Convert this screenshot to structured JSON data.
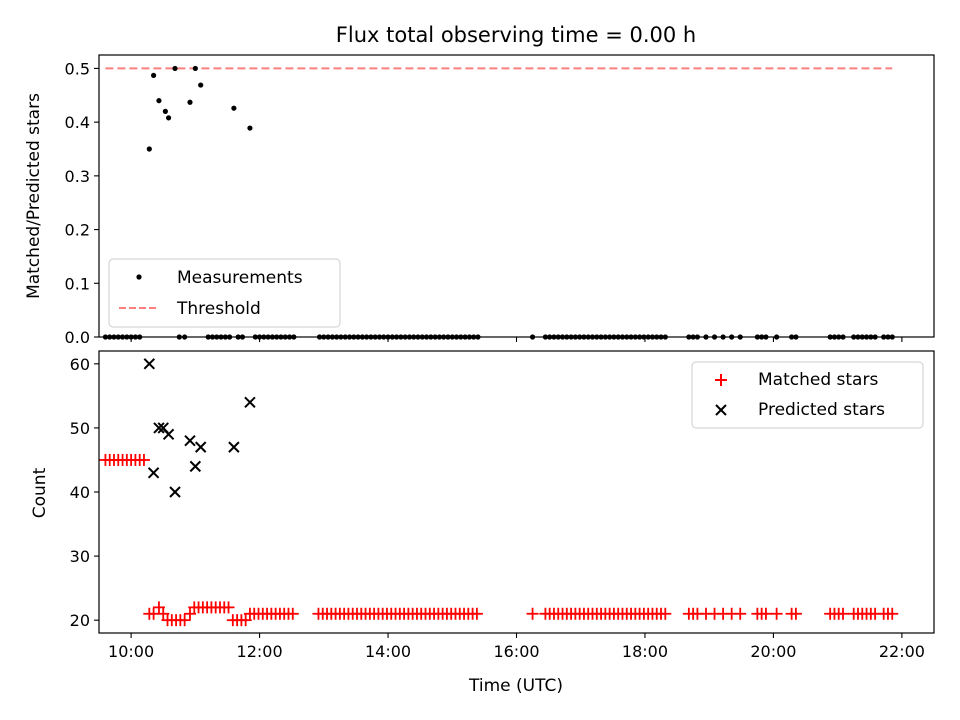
{
  "chart_data": [
    {
      "type": "scatter",
      "title": "Flux total observing time = 0.00 h",
      "xlabel": "",
      "ylabel": "Matched/Predicted stars",
      "xlim": [
        "09:30",
        "22:30"
      ],
      "ylim": [
        0,
        0.525
      ],
      "xticks": [
        "10:00",
        "12:00",
        "14:00",
        "16:00",
        "18:00",
        "20:00",
        "22:00"
      ],
      "yticks": [
        "0.0",
        "0.1",
        "0.2",
        "0.3",
        "0.4",
        "0.5"
      ],
      "legend": {
        "placement": "lower-left",
        "entries": [
          "Measurements",
          "Threshold"
        ]
      },
      "series": [
        {
          "name": "Measurements",
          "color": "#000000",
          "marker": "dot",
          "points": [
            [
              "10:17",
              0.35
            ],
            [
              "10:21",
              0.487
            ],
            [
              "10:26",
              0.44
            ],
            [
              "10:32",
              0.42
            ],
            [
              "10:35",
              0.408
            ],
            [
              "10:41",
              0.5
            ],
            [
              "10:55",
              0.437
            ],
            [
              "11:00",
              0.5
            ],
            [
              "11:05",
              0.469
            ],
            [
              "11:36",
              0.426
            ],
            [
              "11:51",
              0.389
            ]
          ],
          "zero_times": [
            "09:36",
            "09:40",
            "09:44",
            "09:48",
            "09:52",
            "09:56",
            "10:00",
            "10:04",
            "10:08",
            "10:45",
            "10:50",
            "11:12",
            "11:16",
            "11:20",
            "11:24",
            "11:28",
            "11:32",
            "11:40",
            "11:44",
            "11:56",
            "12:00",
            "12:04",
            "12:08",
            "12:12",
            "12:16",
            "12:20",
            "12:24",
            "12:28",
            "12:32",
            "12:56",
            "13:00",
            "13:04",
            "13:08",
            "13:12",
            "13:16",
            "13:20",
            "13:24",
            "13:28",
            "13:32",
            "13:36",
            "13:40",
            "13:44",
            "13:48",
            "13:52",
            "13:56",
            "14:00",
            "14:04",
            "14:08",
            "14:12",
            "14:16",
            "14:20",
            "14:24",
            "14:28",
            "14:32",
            "14:36",
            "14:40",
            "14:44",
            "14:48",
            "14:52",
            "14:56",
            "15:00",
            "15:04",
            "15:08",
            "15:12",
            "15:16",
            "15:20",
            "15:24",
            "16:15",
            "16:27",
            "16:31",
            "16:35",
            "16:39",
            "16:43",
            "16:47",
            "16:51",
            "16:55",
            "16:59",
            "17:03",
            "17:07",
            "17:11",
            "17:15",
            "17:19",
            "17:23",
            "17:27",
            "17:31",
            "17:35",
            "17:39",
            "17:43",
            "17:47",
            "17:51",
            "17:55",
            "17:59",
            "18:03",
            "18:07",
            "18:11",
            "18:15",
            "18:19",
            "18:41",
            "18:45",
            "18:49",
            "18:57",
            "19:05",
            "19:13",
            "19:21",
            "19:29",
            "19:45",
            "19:49",
            "19:53",
            "20:03",
            "20:17",
            "20:21",
            "20:53",
            "20:57",
            "21:01",
            "21:05",
            "21:15",
            "21:19",
            "21:23",
            "21:27",
            "21:31",
            "21:35",
            "21:43",
            "21:47",
            "21:51"
          ]
        },
        {
          "name": "Threshold",
          "color": "#ff7f7f",
          "style": "dashed",
          "x": [
            "09:36",
            "21:51"
          ],
          "values": [
            0.5,
            0.5
          ]
        }
      ]
    },
    {
      "type": "scatter",
      "title": "",
      "xlabel": "Time (UTC)",
      "ylabel": "Count",
      "xlim": [
        "09:30",
        "22:30"
      ],
      "ylim": [
        18,
        62
      ],
      "xticks": [
        "10:00",
        "12:00",
        "14:00",
        "16:00",
        "18:00",
        "20:00",
        "22:00"
      ],
      "yticks": [
        "20",
        "30",
        "40",
        "50",
        "60"
      ],
      "legend": {
        "placement": "top-right",
        "entries": [
          "Matched stars",
          "Predicted stars"
        ]
      },
      "series": [
        {
          "name": "Matched stars",
          "color": "#ff0000",
          "marker": "plus",
          "points": [
            [
              "09:36",
              45
            ],
            [
              "09:40",
              45
            ],
            [
              "09:44",
              45
            ],
            [
              "09:48",
              45
            ],
            [
              "09:52",
              45
            ],
            [
              "09:56",
              45
            ],
            [
              "10:00",
              45
            ],
            [
              "10:04",
              45
            ],
            [
              "10:08",
              45
            ],
            [
              "10:12",
              45
            ],
            [
              "10:17",
              21
            ],
            [
              "10:21",
              21
            ],
            [
              "10:26",
              22
            ],
            [
              "10:30",
              21
            ],
            [
              "10:34",
              20
            ],
            [
              "10:38",
              20
            ],
            [
              "10:42",
              20
            ],
            [
              "10:46",
              20
            ],
            [
              "10:50",
              20
            ],
            [
              "10:55",
              21
            ],
            [
              "10:59",
              22
            ],
            [
              "11:03",
              22
            ],
            [
              "11:07",
              22
            ],
            [
              "11:11",
              22
            ],
            [
              "11:15",
              22
            ],
            [
              "11:19",
              22
            ],
            [
              "11:23",
              22
            ],
            [
              "11:27",
              22
            ],
            [
              "11:31",
              22
            ],
            [
              "11:35",
              20
            ],
            [
              "11:39",
              20
            ],
            [
              "11:43",
              20
            ],
            [
              "11:47",
              20
            ],
            [
              "11:51",
              21
            ],
            [
              "11:55",
              21
            ],
            [
              "11:59",
              21
            ],
            [
              "12:03",
              21
            ],
            [
              "12:07",
              21
            ],
            [
              "12:11",
              21
            ],
            [
              "12:15",
              21
            ],
            [
              "12:19",
              21
            ],
            [
              "12:23",
              21
            ],
            [
              "12:27",
              21
            ],
            [
              "12:31",
              21
            ],
            [
              "12:55",
              21
            ],
            [
              "12:59",
              21
            ],
            [
              "13:03",
              21
            ],
            [
              "13:07",
              21
            ],
            [
              "13:11",
              21
            ],
            [
              "13:15",
              21
            ],
            [
              "13:19",
              21
            ],
            [
              "13:23",
              21
            ],
            [
              "13:27",
              21
            ],
            [
              "13:31",
              21
            ],
            [
              "13:35",
              21
            ],
            [
              "13:39",
              21
            ],
            [
              "13:43",
              21
            ],
            [
              "13:47",
              21
            ],
            [
              "13:51",
              21
            ],
            [
              "13:55",
              21
            ],
            [
              "13:59",
              21
            ],
            [
              "14:03",
              21
            ],
            [
              "14:07",
              21
            ],
            [
              "14:11",
              21
            ],
            [
              "14:15",
              21
            ],
            [
              "14:19",
              21
            ],
            [
              "14:23",
              21
            ],
            [
              "14:27",
              21
            ],
            [
              "14:31",
              21
            ],
            [
              "14:35",
              21
            ],
            [
              "14:39",
              21
            ],
            [
              "14:43",
              21
            ],
            [
              "14:47",
              21
            ],
            [
              "14:51",
              21
            ],
            [
              "14:55",
              21
            ],
            [
              "14:59",
              21
            ],
            [
              "15:03",
              21
            ],
            [
              "15:07",
              21
            ],
            [
              "15:11",
              21
            ],
            [
              "15:15",
              21
            ],
            [
              "15:19",
              21
            ],
            [
              "15:23",
              21
            ],
            [
              "16:15",
              21
            ],
            [
              "16:27",
              21
            ],
            [
              "16:31",
              21
            ],
            [
              "16:35",
              21
            ],
            [
              "16:39",
              21
            ],
            [
              "16:43",
              21
            ],
            [
              "16:47",
              21
            ],
            [
              "16:51",
              21
            ],
            [
              "16:55",
              21
            ],
            [
              "16:59",
              21
            ],
            [
              "17:03",
              21
            ],
            [
              "17:07",
              21
            ],
            [
              "17:11",
              21
            ],
            [
              "17:15",
              21
            ],
            [
              "17:19",
              21
            ],
            [
              "17:23",
              21
            ],
            [
              "17:27",
              21
            ],
            [
              "17:31",
              21
            ],
            [
              "17:35",
              21
            ],
            [
              "17:39",
              21
            ],
            [
              "17:43",
              21
            ],
            [
              "17:47",
              21
            ],
            [
              "17:51",
              21
            ],
            [
              "17:55",
              21
            ],
            [
              "17:59",
              21
            ],
            [
              "18:03",
              21
            ],
            [
              "18:07",
              21
            ],
            [
              "18:11",
              21
            ],
            [
              "18:15",
              21
            ],
            [
              "18:19",
              21
            ],
            [
              "18:41",
              21
            ],
            [
              "18:45",
              21
            ],
            [
              "18:49",
              21
            ],
            [
              "18:57",
              21
            ],
            [
              "19:05",
              21
            ],
            [
              "19:13",
              21
            ],
            [
              "19:21",
              21
            ],
            [
              "19:29",
              21
            ],
            [
              "19:45",
              21
            ],
            [
              "19:49",
              21
            ],
            [
              "19:53",
              21
            ],
            [
              "20:03",
              21
            ],
            [
              "20:17",
              21
            ],
            [
              "20:21",
              21
            ],
            [
              "20:53",
              21
            ],
            [
              "20:57",
              21
            ],
            [
              "21:01",
              21
            ],
            [
              "21:05",
              21
            ],
            [
              "21:15",
              21
            ],
            [
              "21:19",
              21
            ],
            [
              "21:23",
              21
            ],
            [
              "21:27",
              21
            ],
            [
              "21:31",
              21
            ],
            [
              "21:35",
              21
            ],
            [
              "21:43",
              21
            ],
            [
              "21:47",
              21
            ],
            [
              "21:51",
              21
            ]
          ]
        },
        {
          "name": "Predicted stars",
          "color": "#000000",
          "marker": "x",
          "points": [
            [
              "10:17",
              60
            ],
            [
              "10:21",
              43
            ],
            [
              "10:26",
              50
            ],
            [
              "10:30",
              50
            ],
            [
              "10:35",
              49
            ],
            [
              "10:41",
              40
            ],
            [
              "10:55",
              48
            ],
            [
              "11:00",
              44
            ],
            [
              "11:05",
              47
            ],
            [
              "11:36",
              47
            ],
            [
              "11:51",
              54
            ]
          ]
        }
      ]
    }
  ]
}
